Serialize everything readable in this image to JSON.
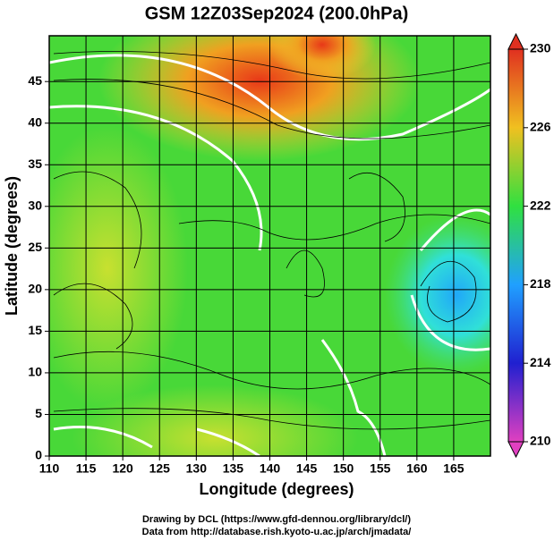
{
  "chart_data": {
    "type": "map",
    "title": "GSM 12Z03Sep2024 (200.0hPa)",
    "xlabel": "Longitude (degrees)",
    "ylabel": "Latitude  (degrees)",
    "xlim": [
      110,
      170
    ],
    "ylim": [
      0,
      50.5
    ],
    "xticks": [
      110,
      115,
      120,
      125,
      130,
      135,
      140,
      145,
      150,
      155,
      160,
      165
    ],
    "yticks": [
      0,
      5,
      10,
      15,
      20,
      25,
      30,
      35,
      40,
      45
    ],
    "grid": true,
    "colorbar": {
      "lim": [
        210,
        230
      ],
      "ticks": [
        210,
        214,
        218,
        222,
        226,
        230
      ],
      "colors": [
        "#e040c0",
        "#2020d0",
        "#20a0ff",
        "#30e040",
        "#f0c020",
        "#e03020"
      ]
    },
    "credits": [
      "Drawing by DCL (https://www.gfd-dennou.org/library/dcl/)",
      "Data from http://database.rish.kyoto-u.ac.jp/arch/jmadata/"
    ]
  }
}
